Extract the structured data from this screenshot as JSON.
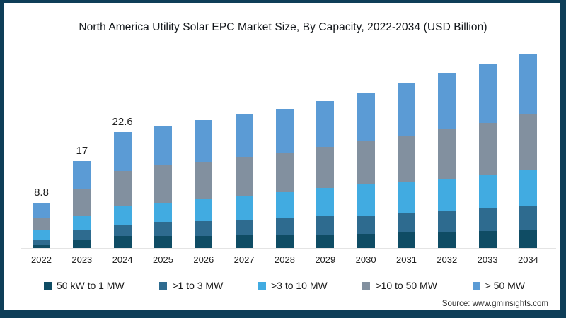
{
  "title": "North America Utility Solar EPC Market Size, By Capacity, 2022-2034 (USD Billion)",
  "source": "Source: www.gminsights.com",
  "frame_color": "#0e3e58",
  "chart_data": {
    "type": "bar",
    "stacked": true,
    "title": "North America Utility Solar EPC Market Size, By Capacity, 2022-2034 (USD Billion)",
    "xlabel": "",
    "ylabel": "USD Billion",
    "grid": false,
    "legend_position": "bottom",
    "categories": [
      "2022",
      "2023",
      "2024",
      "2025",
      "2026",
      "2027",
      "2028",
      "2029",
      "2030",
      "2031",
      "2032",
      "2033",
      "2034"
    ],
    "series": [
      {
        "name": "50 kW to 1 MW",
        "color": "#0f4c64",
        "values": [
          0.7,
          1.5,
          2.3,
          2.3,
          2.4,
          2.5,
          2.6,
          2.7,
          2.8,
          3.0,
          3.1,
          3.3,
          3.45
        ]
      },
      {
        "name": ">1 to 3 MW",
        "color": "#2e6b8f",
        "values": [
          0.9,
          1.9,
          2.3,
          2.8,
          2.9,
          3.1,
          3.3,
          3.5,
          3.6,
          3.8,
          4.1,
          4.4,
          4.9
        ]
      },
      {
        "name": ">3 to 10 MW",
        "color": "#41abe1",
        "values": [
          1.8,
          2.9,
          3.7,
          3.8,
          4.2,
          4.6,
          5.0,
          5.5,
          6.0,
          6.2,
          6.4,
          6.6,
          6.8
        ]
      },
      {
        "name": ">10 to 50 MW",
        "color": "#82909f",
        "values": [
          2.5,
          5.1,
          6.8,
          7.2,
          7.4,
          7.6,
          7.8,
          8.1,
          8.4,
          9.0,
          9.6,
          10.2,
          10.9
        ]
      },
      {
        "name": "> 50 MW",
        "color": "#5b9bd5",
        "values": [
          2.9,
          5.6,
          7.5,
          7.7,
          8.1,
          8.3,
          8.5,
          9.0,
          9.6,
          10.2,
          10.9,
          11.5,
          11.95
        ]
      }
    ],
    "totals": [
      8.8,
      17.0,
      22.6,
      23.8,
      25.0,
      26.1,
      27.2,
      28.8,
      30.4,
      32.2,
      34.1,
      36.0,
      38.0
    ],
    "shown_total_labels": [
      "8.8",
      "17",
      "22.6",
      "",
      "",
      "",
      "",
      "",
      "",
      "",
      "",
      "",
      ""
    ],
    "ylim": [
      0,
      40
    ]
  }
}
